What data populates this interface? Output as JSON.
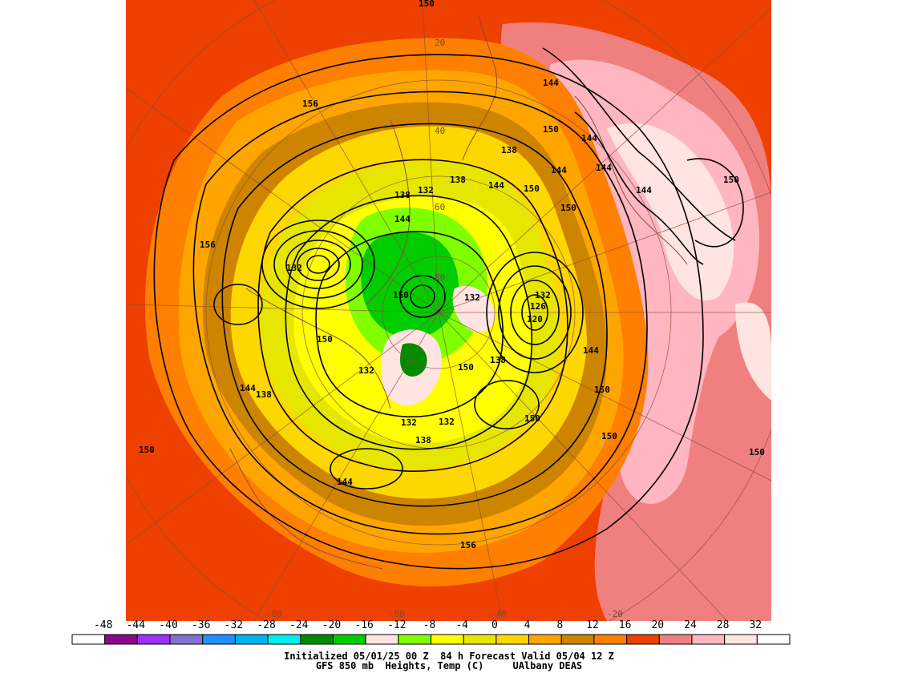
{
  "caption": {
    "line1": "Initialized 05/01/25 00 Z  84 h Forecast Valid 05/04 12 Z",
    "line2": "GFS 850 mb  Heights, Temp (C)     UAlbany DEAS"
  },
  "colorbar": {
    "ticks": [
      "-48",
      "-44",
      "-40",
      "-36",
      "-32",
      "-28",
      "-24",
      "-20",
      "-16",
      "-12",
      "-8",
      "-4",
      "0",
      "4",
      "8",
      "12",
      "16",
      "20",
      "24",
      "28",
      "32"
    ],
    "colors": [
      "#ffffff",
      "#8b0a8b",
      "#9b30ff",
      "#8470d0",
      "#1e90ff",
      "#00b2ee",
      "#00eeee",
      "#008b00",
      "#00cd00",
      "#ffe4e1",
      "#7fff00",
      "#ffff00",
      "#e6e600",
      "#ffd700",
      "#ffa500",
      "#cd8500",
      "#ff7f00",
      "#ee4000",
      "#f08080",
      "#ffb6c1",
      "#ffe4e1",
      "#ffffff"
    ]
  },
  "map": {
    "background_color": "#ee4000",
    "lat_labels": [
      "20",
      "40",
      "60",
      "80"
    ],
    "lon_labels": [
      "-60",
      "-40",
      "-20",
      "-80"
    ],
    "contour_labels": [
      {
        "text": "150",
        "id": "l1"
      },
      {
        "text": "156",
        "id": "l2"
      },
      {
        "text": "144",
        "id": "l3"
      },
      {
        "text": "150",
        "id": "l4"
      },
      {
        "text": "144",
        "id": "l5"
      },
      {
        "text": "138",
        "id": "l6"
      },
      {
        "text": "156",
        "id": "l7"
      },
      {
        "text": "144",
        "id": "l8"
      },
      {
        "text": "150",
        "id": "l9"
      },
      {
        "text": "138",
        "id": "l10"
      },
      {
        "text": "132",
        "id": "l11"
      },
      {
        "text": "138",
        "id": "l12"
      },
      {
        "text": "144",
        "id": "l13"
      },
      {
        "text": "144",
        "id": "l14"
      },
      {
        "text": "150",
        "id": "l15"
      },
      {
        "text": "150",
        "id": "l16"
      },
      {
        "text": "156",
        "id": "l17"
      },
      {
        "text": "132",
        "id": "l18"
      },
      {
        "text": "150",
        "id": "l19"
      },
      {
        "text": "132",
        "id": "l20"
      },
      {
        "text": "132",
        "id": "l21"
      },
      {
        "text": "126",
        "id": "l22"
      },
      {
        "text": "120",
        "id": "l23"
      },
      {
        "text": "150",
        "id": "l24"
      },
      {
        "text": "144",
        "id": "l25"
      },
      {
        "text": "138",
        "id": "l26"
      },
      {
        "text": "150",
        "id": "l27"
      },
      {
        "text": "132",
        "id": "l28"
      },
      {
        "text": "144",
        "id": "l29"
      },
      {
        "text": "138",
        "id": "l30"
      },
      {
        "text": "150",
        "id": "l31"
      },
      {
        "text": "150",
        "id": "l32"
      },
      {
        "text": "132",
        "id": "l33"
      },
      {
        "text": "132",
        "id": "l34"
      },
      {
        "text": "138",
        "id": "l35"
      },
      {
        "text": "150",
        "id": "l36"
      },
      {
        "text": "150",
        "id": "l37"
      },
      {
        "text": "144",
        "id": "l38"
      },
      {
        "text": "156",
        "id": "l39"
      },
      {
        "text": "150",
        "id": "l40"
      }
    ]
  }
}
